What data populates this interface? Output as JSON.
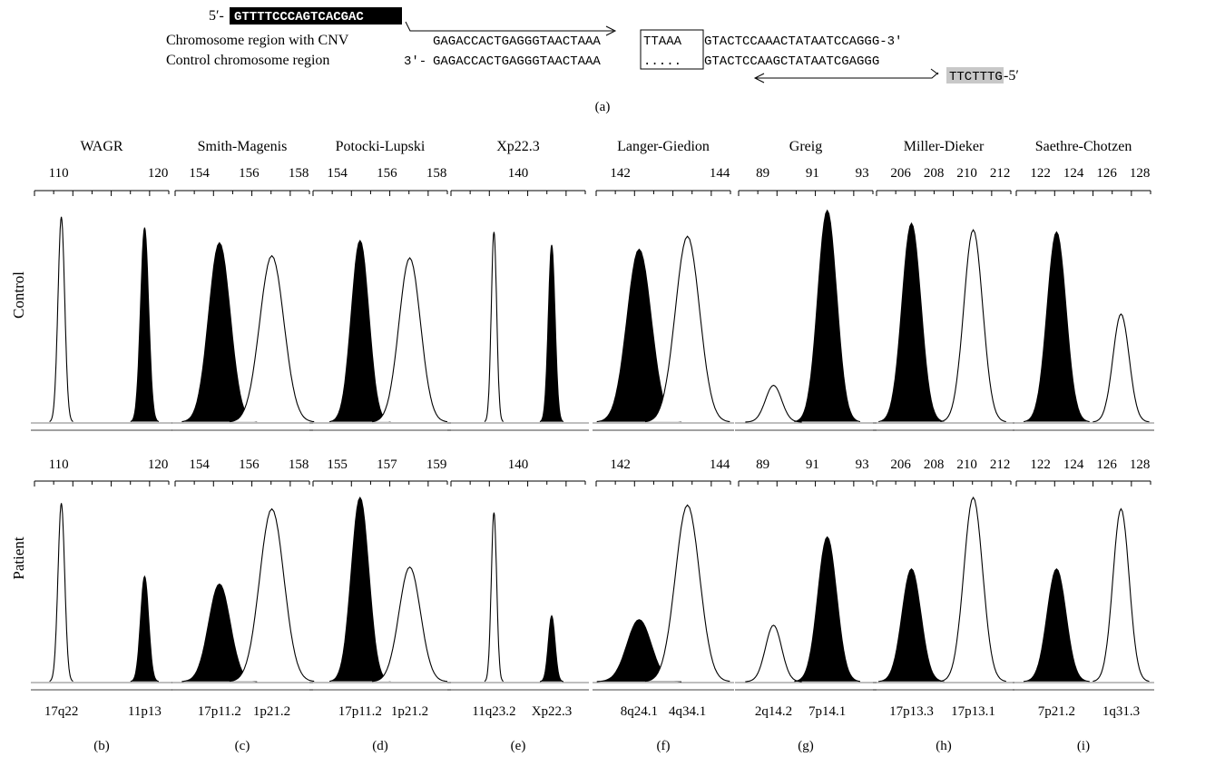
{
  "panel_a": {
    "label": "(a)",
    "primer_forward": {
      "prefix": "5′-",
      "sequence": "GTTTTCCCAGTCACGAC"
    },
    "cnv_row": {
      "label": "Chromosome region with CNV",
      "seq_left": "GAGACCACTGAGGGTAACTAAA",
      "boxed": "TTAAA",
      "seq_right": "GTACTCCAAACTATAATCCAGGG-3′"
    },
    "control_row": {
      "label": "Control chromosome region",
      "prefix": "3′-",
      "seq_left": "GAGACCACTGAGGGTAACTAAA",
      "boxed": ".....",
      "seq_right": "GTACTCCAAGCTATAATCGAGGG"
    },
    "primer_reverse": {
      "sequence": "TTCTTTG",
      "suffix": "-5′"
    },
    "colors": {
      "forward_highlight": "#000000",
      "reverse_highlight": "#c8c8c8"
    }
  },
  "row_labels": {
    "control": "Control",
    "patient": "Patient"
  },
  "chart_data": [
    {
      "type": "line",
      "syndrome": "WAGR",
      "panel": "(b)",
      "control_ticks": [
        "110",
        "120"
      ],
      "patient_ticks": [
        "110",
        "120"
      ],
      "loci": [
        "17q22",
        "11p13"
      ],
      "series": [
        {
          "name": "17q22",
          "fill": "white",
          "control_height": 0.95,
          "patient_height": 0.95
        },
        {
          "name": "11p13",
          "fill": "black",
          "control_height": 0.9,
          "patient_height": 0.56
        }
      ]
    },
    {
      "type": "line",
      "syndrome": "Smith-Magenis",
      "panel": "(c)",
      "control_ticks": [
        "154",
        "156",
        "158"
      ],
      "patient_ticks": [
        "154",
        "156",
        "158"
      ],
      "loci": [
        "17p11.2",
        "1p21.2"
      ],
      "series": [
        {
          "name": "17p11.2",
          "fill": "black",
          "control_height": 0.83,
          "patient_height": 0.52
        },
        {
          "name": "1p21.2",
          "fill": "white",
          "control_height": 0.77,
          "patient_height": 0.92
        }
      ]
    },
    {
      "type": "line",
      "syndrome": "Potocki-Lupski",
      "panel": "(d)",
      "control_ticks": [
        "154",
        "156",
        "158"
      ],
      "patient_ticks": [
        "155",
        "157",
        "159"
      ],
      "loci": [
        "17p11.2",
        "1p21.2"
      ],
      "series": [
        {
          "name": "17p11.2",
          "fill": "black",
          "control_height": 0.84,
          "patient_height": 0.98
        },
        {
          "name": "1p21.2",
          "fill": "white",
          "control_height": 0.76,
          "patient_height": 0.61
        }
      ]
    },
    {
      "type": "line",
      "syndrome": "Xp22.3",
      "panel": "(e)",
      "control_ticks": [
        "140"
      ],
      "patient_ticks": [
        "140"
      ],
      "loci": [
        "11q23.2",
        "Xp22.3"
      ],
      "series": [
        {
          "name": "11q23.2",
          "fill": "white",
          "control_height": 0.88,
          "patient_height": 0.9
        },
        {
          "name": "Xp22.3",
          "fill": "black",
          "control_height": 0.82,
          "patient_height": 0.35
        }
      ]
    },
    {
      "type": "line",
      "syndrome": "Langer-Giedion",
      "panel": "(f)",
      "control_ticks": [
        "142",
        "144"
      ],
      "patient_ticks": [
        "142",
        "144"
      ],
      "loci": [
        "8q24.1",
        "4q34.1"
      ],
      "series": [
        {
          "name": "8q24.1",
          "fill": "black",
          "control_height": 0.8,
          "patient_height": 0.33
        },
        {
          "name": "4q34.1",
          "fill": "white",
          "control_height": 0.86,
          "patient_height": 0.94
        }
      ]
    },
    {
      "type": "line",
      "syndrome": "Greig",
      "panel": "(g)",
      "control_ticks": [
        "89",
        "91",
        "93"
      ],
      "patient_ticks": [
        "89",
        "91",
        "93"
      ],
      "loci": [
        "2q14.2",
        "7p14.1"
      ],
      "series": [
        {
          "name": "2q14.2",
          "fill": "white",
          "control_height": 0.17,
          "patient_height": 0.3
        },
        {
          "name": "7p14.1",
          "fill": "black",
          "control_height": 0.98,
          "patient_height": 0.77
        }
      ]
    },
    {
      "type": "line",
      "syndrome": "Miller-Dieker",
      "panel": "(h)",
      "control_ticks": [
        "206",
        "208",
        "210",
        "212"
      ],
      "patient_ticks": [
        "206",
        "208",
        "210",
        "212"
      ],
      "loci": [
        "17p13.3",
        "17p13.1"
      ],
      "series": [
        {
          "name": "17p13.3",
          "fill": "black",
          "control_height": 0.92,
          "patient_height": 0.6
        },
        {
          "name": "17p13.1",
          "fill": "white",
          "control_height": 0.89,
          "patient_height": 0.98
        }
      ]
    },
    {
      "type": "line",
      "syndrome": "Saethre-Chotzen",
      "panel": "(i)",
      "control_ticks": [
        "122",
        "124",
        "126",
        "128"
      ],
      "patient_ticks": [
        "122",
        "124",
        "126",
        "128"
      ],
      "loci": [
        "7p21.2",
        "1q31.3"
      ],
      "series": [
        {
          "name": "7p21.2",
          "fill": "black",
          "control_height": 0.88,
          "patient_height": 0.6
        },
        {
          "name": "1q31.3",
          "fill": "white",
          "control_height": 0.5,
          "patient_height": 0.92
        }
      ]
    }
  ]
}
